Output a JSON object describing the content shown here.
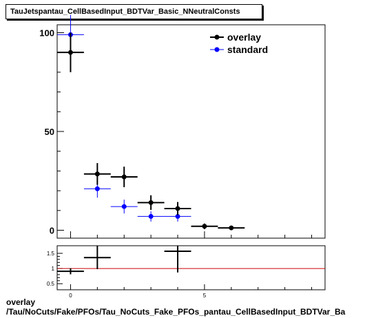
{
  "title": "TauJetspantau_CellBasedInput_BDTVar_Basic_NNeutralConsts",
  "footer": {
    "line1": "overlay",
    "line2": "/Tau/NoCuts/Fake/PFOs/Tau_NoCuts_Fake_PFOs_pantau_CellBasedInput_BDTVar_Ba"
  },
  "colors": {
    "overlay": "#000000",
    "standard": "#0000ff",
    "ratio_line": "#cc0000"
  },
  "chart_data": [
    {
      "type": "scatter",
      "title": "TauJetspantau_CellBasedInput_BDTVar_Basic_NNeutralConsts",
      "xlim": [
        -0.5,
        9.5
      ],
      "ylim": [
        -4,
        104
      ],
      "yticks": [
        0,
        50,
        100
      ],
      "xticks": [],
      "legend": {
        "position": "top-right",
        "entries": [
          "overlay",
          "standard"
        ]
      },
      "series": [
        {
          "name": "overlay",
          "x": [
            0,
            1,
            2,
            3,
            4,
            5,
            6
          ],
          "values": [
            90,
            28.5,
            27,
            14,
            11,
            2,
            1.2
          ],
          "errors": [
            10,
            5.5,
            5.2,
            3.7,
            3.3,
            1.4,
            1.1
          ]
        },
        {
          "name": "standard",
          "x": [
            0,
            1,
            2,
            3,
            4
          ],
          "values": [
            99,
            21,
            12,
            7,
            7
          ],
          "errors": [
            10,
            4.5,
            3.5,
            2.6,
            2.6
          ]
        }
      ]
    },
    {
      "type": "scatter",
      "xlim": [
        -0.5,
        9.5
      ],
      "ylim": [
        0.3,
        1.75
      ],
      "yticks": [
        0.5,
        1,
        1.5
      ],
      "xticks": [
        0,
        5
      ],
      "reference_line": 1,
      "series": [
        {
          "name": "overlay",
          "x": [
            0,
            1,
            4
          ],
          "values": [
            0.91,
            1.36,
            1.57
          ],
          "errors": [
            0.1,
            0.38,
            0.7
          ]
        }
      ]
    }
  ]
}
